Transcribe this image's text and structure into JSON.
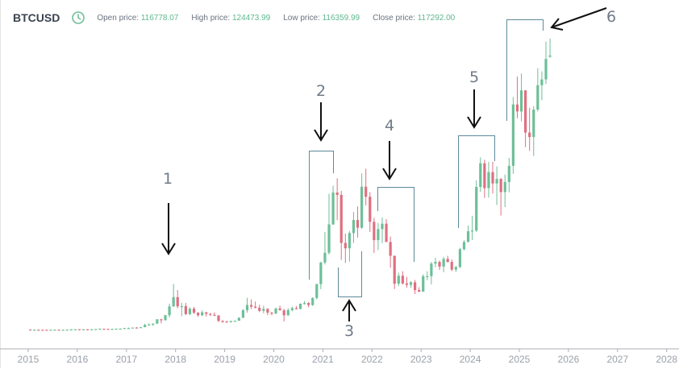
{
  "header": {
    "symbol": "BTCUSD",
    "clock_icon": "clock-icon",
    "open_label": "Open price:",
    "open_value": "116778.07",
    "high_label": "High price:",
    "high_value": "124473.99",
    "low_label": "Low price:",
    "low_value": "116359.99",
    "close_label": "Close price:",
    "close_value": "117292.00"
  },
  "colors": {
    "up": "#6dbf98",
    "down": "#df6f80",
    "bracket": "#5d8a99",
    "arrow": "#111111",
    "label": "#6f7b88"
  },
  "annotations": [
    {
      "label": "1"
    },
    {
      "label": "2"
    },
    {
      "label": "3"
    },
    {
      "label": "4"
    },
    {
      "label": "5"
    },
    {
      "label": "6"
    }
  ],
  "chart_data": {
    "type": "candlestick",
    "symbol": "BTCUSD",
    "interval": "monthly",
    "start": "2015-01",
    "xlabel": "",
    "ylabel": "",
    "x_ticks": [
      "2015",
      "2016",
      "2017",
      "2018",
      "2019",
      "2020",
      "2021",
      "2022",
      "2023",
      "2024",
      "2025",
      "2026",
      "2027",
      "2028"
    ],
    "ylim": [
      0,
      124473.99
    ],
    "grid": false,
    "candles_ohlc": [
      [
        320,
        320,
        170,
        217
      ],
      [
        217,
        265,
        212,
        254
      ],
      [
        254,
        300,
        240,
        244
      ],
      [
        244,
        260,
        215,
        236
      ],
      [
        236,
        248,
        226,
        230
      ],
      [
        230,
        268,
        220,
        263
      ],
      [
        263,
        318,
        255,
        284
      ],
      [
        284,
        285,
        200,
        230
      ],
      [
        230,
        245,
        225,
        236
      ],
      [
        236,
        335,
        236,
        314
      ],
      [
        314,
        500,
        310,
        377
      ],
      [
        377,
        467,
        350,
        430
      ],
      [
        430,
        462,
        350,
        368
      ],
      [
        368,
        448,
        365,
        437
      ],
      [
        437,
        440,
        400,
        416
      ],
      [
        416,
        470,
        410,
        448
      ],
      [
        448,
        548,
        440,
        531
      ],
      [
        531,
        780,
        525,
        673
      ],
      [
        673,
        700,
        600,
        624
      ],
      [
        624,
        630,
        510,
        574
      ],
      [
        574,
        615,
        570,
        609
      ],
      [
        609,
        740,
        605,
        700
      ],
      [
        700,
        755,
        680,
        742
      ],
      [
        742,
        980,
        740,
        964
      ],
      [
        964,
        1160,
        750,
        970
      ],
      [
        970,
        1200,
        910,
        1190
      ],
      [
        1190,
        1350,
        890,
        1080
      ],
      [
        1080,
        1400,
        1060,
        1350
      ],
      [
        1350,
        2780,
        1340,
        2300
      ],
      [
        2300,
        2980,
        2100,
        2480
      ],
      [
        2480,
        2930,
        1840,
        2875
      ],
      [
        2875,
        4760,
        2700,
        4700
      ],
      [
        4700,
        4980,
        2970,
        4340
      ],
      [
        4340,
        6470,
        4150,
        6470
      ],
      [
        6470,
        11400,
        5500,
        10230
      ],
      [
        10230,
        19800,
        10000,
        14160
      ],
      [
        14160,
        17200,
        9400,
        10220
      ],
      [
        10220,
        11800,
        6000,
        10330
      ],
      [
        10330,
        11700,
        6500,
        6930
      ],
      [
        6930,
        9800,
        6500,
        9240
      ],
      [
        9240,
        9990,
        7000,
        7500
      ],
      [
        7500,
        7800,
        5800,
        6400
      ],
      [
        6400,
        8500,
        6100,
        7730
      ],
      [
        7730,
        7760,
        5900,
        7030
      ],
      [
        7030,
        7400,
        6100,
        6630
      ],
      [
        6630,
        7700,
        6200,
        6310
      ],
      [
        6310,
        6560,
        3600,
        4020
      ],
      [
        4020,
        4300,
        3200,
        3740
      ],
      [
        3740,
        4100,
        3350,
        3460
      ],
      [
        3460,
        4200,
        3400,
        3850
      ],
      [
        3850,
        4150,
        3700,
        4100
      ],
      [
        4100,
        5600,
        4050,
        5320
      ],
      [
        5320,
        9100,
        5300,
        8570
      ],
      [
        8570,
        13900,
        7500,
        10820
      ],
      [
        10820,
        13200,
        9100,
        10090
      ],
      [
        10090,
        12300,
        9350,
        9630
      ],
      [
        9630,
        10950,
        7800,
        8300
      ],
      [
        8300,
        10500,
        7300,
        9150
      ],
      [
        9150,
        9500,
        6500,
        7560
      ],
      [
        7560,
        7800,
        6430,
        7200
      ],
      [
        7200,
        9600,
        6870,
        9350
      ],
      [
        9350,
        10500,
        8500,
        8550
      ],
      [
        8550,
        9200,
        3800,
        6420
      ],
      [
        6420,
        9450,
        6200,
        8620
      ],
      [
        8620,
        10100,
        8100,
        9450
      ],
      [
        9450,
        10400,
        8900,
        9140
      ],
      [
        9140,
        11450,
        8950,
        11350
      ],
      [
        11350,
        12500,
        11000,
        11650
      ],
      [
        11650,
        12100,
        9850,
        10780
      ],
      [
        10780,
        14100,
        10400,
        13800
      ],
      [
        13800,
        19900,
        13200,
        19700
      ],
      [
        19700,
        29300,
        17600,
        28950
      ],
      [
        28950,
        41900,
        28100,
        33100
      ],
      [
        33100,
        58300,
        32300,
        45200
      ],
      [
        45200,
        61700,
        45000,
        58800
      ],
      [
        58800,
        64900,
        47000,
        57800
      ],
      [
        57800,
        59500,
        30000,
        37300
      ],
      [
        37300,
        41300,
        28800,
        35000
      ],
      [
        35000,
        42400,
        29300,
        41500
      ],
      [
        41500,
        50500,
        37300,
        47100
      ],
      [
        47100,
        52900,
        39600,
        43800
      ],
      [
        43800,
        67000,
        43300,
        61300
      ],
      [
        61300,
        69000,
        53300,
        57000
      ],
      [
        57000,
        59000,
        42000,
        46300
      ],
      [
        46300,
        48000,
        33000,
        38500
      ],
      [
        38500,
        45800,
        34300,
        43200
      ],
      [
        43200,
        48200,
        37200,
        45500
      ],
      [
        45500,
        47400,
        37700,
        37700
      ],
      [
        37700,
        40000,
        26700,
        31800
      ],
      [
        31800,
        31900,
        17600,
        19900
      ],
      [
        19900,
        24600,
        18800,
        23300
      ],
      [
        23300,
        25200,
        19600,
        20000
      ],
      [
        20000,
        22800,
        18200,
        19400
      ],
      [
        19400,
        21000,
        18200,
        20500
      ],
      [
        20500,
        21500,
        15500,
        17200
      ],
      [
        17200,
        18400,
        16300,
        16500
      ],
      [
        16500,
        23900,
        16500,
        23100
      ],
      [
        23100,
        25200,
        21400,
        23100
      ],
      [
        23100,
        29200,
        19600,
        28500
      ],
      [
        28500,
        31000,
        26900,
        29200
      ],
      [
        29200,
        29800,
        25800,
        27200
      ],
      [
        27200,
        31400,
        24800,
        30500
      ],
      [
        30500,
        31800,
        28900,
        29200
      ],
      [
        29200,
        30200,
        25300,
        25900
      ],
      [
        25900,
        27500,
        24900,
        27000
      ],
      [
        27000,
        35200,
        26600,
        34600
      ],
      [
        34600,
        38400,
        34100,
        37700
      ],
      [
        37700,
        44700,
        37600,
        42300
      ],
      [
        42300,
        48900,
        38500,
        42600
      ],
      [
        42600,
        64000,
        41900,
        61200
      ],
      [
        61200,
        73800,
        59100,
        71300
      ],
      [
        71300,
        72800,
        56500,
        60700
      ],
      [
        60700,
        71900,
        56600,
        67500
      ],
      [
        67500,
        72000,
        58400,
        62700
      ],
      [
        62700,
        70000,
        53500,
        64600
      ],
      [
        64600,
        65100,
        49000,
        59000
      ],
      [
        59000,
        66500,
        52600,
        63300
      ],
      [
        63300,
        73600,
        58900,
        70200
      ],
      [
        70200,
        99600,
        66800,
        96400
      ],
      [
        96400,
        108300,
        90500,
        93400
      ],
      [
        93400,
        109600,
        89200,
        102400
      ],
      [
        102400,
        102500,
        78200,
        84400
      ],
      [
        84400,
        95000,
        76600,
        82500
      ],
      [
        82500,
        95700,
        74400,
        94200
      ],
      [
        94200,
        111900,
        93400,
        104600
      ],
      [
        104600,
        110500,
        98200,
        107100
      ],
      [
        107100,
        123200,
        105100,
        115800
      ],
      [
        116778.07,
        124473.99,
        116359.99,
        117292.0
      ]
    ]
  }
}
